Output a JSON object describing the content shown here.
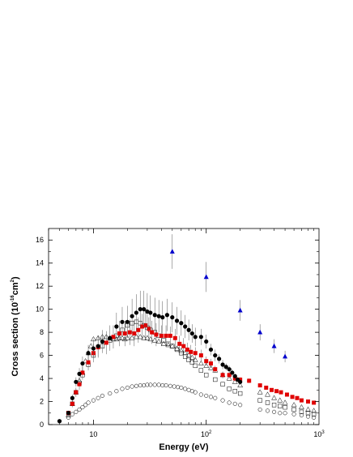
{
  "chart_data": {
    "type": "scatter",
    "xlabel": "Energy (eV)",
    "ylabel": {
      "base": "Cross section (10",
      "exp": "-16",
      "unit": "cm",
      "unit_exp": "2",
      "close": ")"
    },
    "x_scale": "log",
    "xlim": [
      4,
      1000
    ],
    "ylim": [
      0,
      17
    ],
    "x_ticks": [
      {
        "value": 10,
        "base": "10",
        "exp": ""
      },
      {
        "value": 100,
        "base": "10",
        "exp": "2"
      },
      {
        "value": 1000,
        "base": "10",
        "exp": "3"
      }
    ],
    "y_ticks": [
      "0",
      "2",
      "4",
      "6",
      "8",
      "10",
      "12",
      "14",
      "16"
    ],
    "grid": false,
    "legend": "none",
    "series": [
      {
        "marker": "filled-circle",
        "color": "#000000",
        "x": [
          5,
          6,
          6.5,
          7,
          7.5,
          8,
          9,
          10,
          11,
          12,
          14,
          16,
          18,
          20,
          22,
          24,
          26,
          28,
          30,
          32,
          35,
          38,
          41,
          45,
          50,
          55,
          60,
          65,
          70,
          75,
          80,
          90,
          100,
          110,
          120,
          130,
          140,
          150,
          160,
          170,
          180,
          190,
          200
        ],
        "y": [
          0.3,
          1.0,
          2.3,
          3.7,
          4.4,
          5.3,
          6.2,
          6.6,
          6.8,
          7.2,
          7.5,
          8.5,
          8.9,
          8.9,
          9.4,
          9.7,
          10.0,
          10.0,
          9.8,
          9.7,
          9.5,
          9.4,
          9.3,
          9.5,
          9.3,
          9.0,
          8.8,
          8.5,
          8.2,
          7.9,
          7.6,
          7.6,
          7.2,
          6.5,
          6.0,
          5.7,
          5.2,
          5.0,
          4.8,
          4.5,
          4.2,
          3.9,
          3.7
        ],
        "err": [
          0.1,
          0.2,
          0.3,
          0.4,
          0.5,
          0.6,
          0.7,
          0.8,
          0.9,
          1.0,
          1.1,
          1.2,
          1.3,
          1.4,
          1.5,
          1.6,
          1.6,
          1.6,
          1.6,
          1.5,
          1.5,
          1.4,
          1.4,
          1.4,
          1.3,
          1.2,
          1.1,
          1.0,
          0.9,
          0.8,
          0.8,
          0.7,
          0.6,
          0.5,
          0.5,
          0.4,
          0.4,
          0.3,
          0.3,
          0.3,
          0.2,
          0.2,
          0.2
        ]
      },
      {
        "marker": "filled-square",
        "color": "#e00000",
        "x": [
          6,
          6.5,
          7,
          7.5,
          8,
          9,
          10,
          11,
          13,
          15,
          17,
          19,
          21,
          23,
          25,
          27,
          29,
          31,
          33,
          36,
          40,
          44,
          48,
          53,
          58,
          63,
          68,
          73,
          80,
          90,
          100,
          110,
          120,
          140,
          160,
          180,
          200,
          240,
          300,
          340,
          380,
          420,
          460,
          520,
          580,
          640,
          700,
          800,
          900
        ],
        "y": [
          1.0,
          1.8,
          2.8,
          3.5,
          4.5,
          5.4,
          6.2,
          6.7,
          7.1,
          7.6,
          7.9,
          7.9,
          8.0,
          7.9,
          8.2,
          8.5,
          8.6,
          8.3,
          8.0,
          7.8,
          7.7,
          7.7,
          7.7,
          7.5,
          7.0,
          6.8,
          6.5,
          6.3,
          6.2,
          6.0,
          5.5,
          5.3,
          4.8,
          4.3,
          4.3,
          4.0,
          3.9,
          3.8,
          3.4,
          3.2,
          3.0,
          2.9,
          2.8,
          2.6,
          2.4,
          2.3,
          2.1,
          2.0,
          1.9
        ],
        "err": [
          0.2,
          0.3,
          0.4,
          0.5,
          0.6,
          0.7,
          0.8,
          0.9,
          1.0,
          1.0,
          1.1,
          1.1,
          1.1,
          1.1,
          1.1,
          1.1,
          1.1,
          1.0,
          1.0,
          1.0,
          0.9,
          0.9,
          0.8,
          0.8,
          0.7,
          0.7,
          0.6,
          0.6,
          0.5,
          0.5,
          0.4,
          0.4,
          0.3,
          0.3,
          0.3,
          0.2,
          0.2,
          0.2,
          0,
          0,
          0,
          0,
          0,
          0,
          0,
          0,
          0,
          0,
          0
        ]
      },
      {
        "marker": "open-triangle",
        "color": "#000000",
        "x": [
          6,
          6.5,
          7,
          7.5,
          8,
          8.5,
          9,
          9.5,
          10,
          11,
          12,
          13,
          14,
          15,
          16,
          17,
          18,
          19,
          20,
          22,
          24,
          26,
          28,
          30,
          32,
          35,
          38,
          42,
          46,
          50,
          55,
          60,
          65,
          70,
          75,
          80,
          90,
          100,
          110,
          120,
          140,
          160,
          180,
          200,
          300,
          350,
          400,
          450,
          500,
          600,
          700,
          800,
          900
        ],
        "y": [
          0.8,
          1.8,
          2.8,
          3.8,
          4.5,
          5.5,
          6.2,
          6.8,
          7.4,
          7.5,
          7.6,
          7.6,
          7.5,
          7.4,
          7.4,
          7.5,
          7.5,
          7.4,
          7.5,
          7.5,
          7.6,
          7.6,
          7.5,
          7.5,
          7.4,
          7.3,
          7.2,
          7.0,
          6.9,
          6.8,
          6.6,
          6.4,
          6.2,
          6.0,
          5.8,
          5.6,
          5.3,
          5.1,
          4.9,
          4.7,
          4.3,
          4.0,
          3.7,
          3.4,
          2.8,
          2.6,
          2.3,
          2.1,
          1.9,
          1.7,
          1.5,
          1.3,
          1.2
        ]
      },
      {
        "marker": "open-square",
        "color": "#000000",
        "x": [
          6,
          6.5,
          7,
          7.5,
          8,
          9,
          10,
          12,
          14,
          16,
          18,
          20,
          22,
          24,
          26,
          28,
          30,
          32,
          35,
          38,
          42,
          46,
          50,
          55,
          60,
          65,
          70,
          75,
          80,
          90,
          100,
          120,
          140,
          160,
          180,
          200,
          300,
          350,
          400,
          450,
          500,
          600,
          700,
          800,
          900
        ],
        "y": [
          1.0,
          1.8,
          2.8,
          3.6,
          4.3,
          5.2,
          6.0,
          6.8,
          7.3,
          7.7,
          8.2,
          8.6,
          8.8,
          8.9,
          8.8,
          8.6,
          8.4,
          8.2,
          8.0,
          7.7,
          7.3,
          7.0,
          6.8,
          6.5,
          6.2,
          5.9,
          5.6,
          5.4,
          5.1,
          4.7,
          4.3,
          3.9,
          3.5,
          3.1,
          2.9,
          2.7,
          2.1,
          1.9,
          1.7,
          1.6,
          1.5,
          1.3,
          1.1,
          1.0,
          0.9
        ]
      },
      {
        "marker": "open-circle",
        "color": "#000000",
        "x": [
          6,
          6.5,
          7,
          7.5,
          8,
          8.5,
          9,
          10,
          11,
          12,
          14,
          16,
          18,
          20,
          22,
          24,
          26,
          28,
          30,
          32,
          35,
          38,
          41,
          44,
          48,
          52,
          56,
          60,
          65,
          70,
          75,
          80,
          90,
          100,
          110,
          120,
          140,
          160,
          180,
          200,
          300,
          350,
          400,
          450,
          500,
          600,
          700,
          800,
          900
        ],
        "y": [
          0.6,
          0.9,
          1.1,
          1.3,
          1.5,
          1.7,
          1.9,
          2.1,
          2.3,
          2.5,
          2.7,
          2.9,
          3.1,
          3.2,
          3.3,
          3.35,
          3.4,
          3.4,
          3.45,
          3.45,
          3.45,
          3.45,
          3.4,
          3.4,
          3.35,
          3.3,
          3.25,
          3.2,
          3.1,
          3.0,
          2.9,
          2.8,
          2.6,
          2.5,
          2.4,
          2.3,
          2.1,
          1.9,
          1.8,
          1.7,
          1.3,
          1.2,
          1.1,
          1.0,
          1.0,
          0.9,
          0.8,
          0.7,
          0.6
        ]
      },
      {
        "marker": "filled-triangle",
        "color": "#0000cc",
        "x": [
          50,
          100,
          200,
          300,
          400,
          500
        ],
        "y": [
          15.0,
          12.8,
          9.9,
          8.0,
          6.8,
          5.9
        ],
        "err": [
          1.5,
          1.3,
          0.9,
          0.7,
          0.6,
          0.5
        ]
      }
    ]
  }
}
